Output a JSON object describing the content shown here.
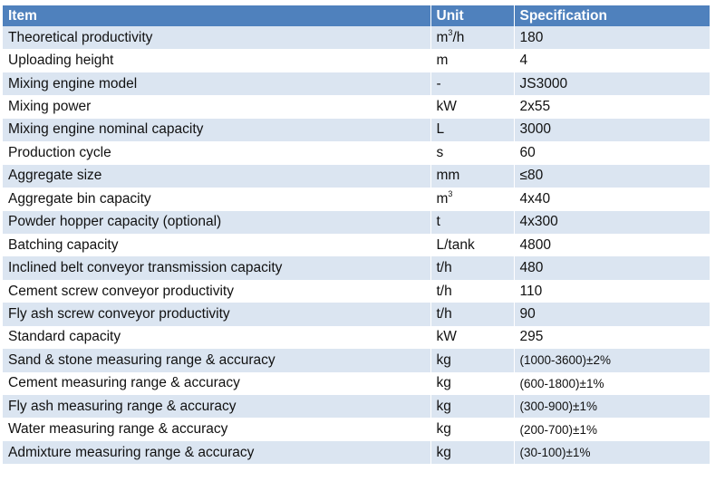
{
  "table": {
    "headers": {
      "item": "Item",
      "unit": "Unit",
      "specification": "Specification"
    },
    "rows": [
      {
        "item": "Theoretical productivity",
        "unit": "m",
        "unit_sup": "3",
        "unit_suffix": "/h",
        "spec": "180"
      },
      {
        "item": "Uploading height",
        "unit": "m",
        "unit_sup": "",
        "unit_suffix": "",
        "spec": "4"
      },
      {
        "item": "Mixing engine model",
        "unit": "-",
        "unit_sup": "",
        "unit_suffix": "",
        "spec": "JS3000"
      },
      {
        "item": "Mixing power",
        "unit": "kW",
        "unit_sup": "",
        "unit_suffix": "",
        "spec": "2x55"
      },
      {
        "item": "Mixing engine nominal capacity",
        "unit": "L",
        "unit_sup": "",
        "unit_suffix": "",
        "spec": "3000"
      },
      {
        "item": "Production cycle",
        "unit": "s",
        "unit_sup": "",
        "unit_suffix": "",
        "spec": "60"
      },
      {
        "item": "Aggregate size",
        "unit": "mm",
        "unit_sup": "",
        "unit_suffix": "",
        "spec": "≤80"
      },
      {
        "item": "Aggregate bin capacity",
        "unit": "m",
        "unit_sup": "3",
        "unit_suffix": "",
        "spec": "4x40"
      },
      {
        "item": "Powder hopper capacity (optional)",
        "unit": "t",
        "unit_sup": "",
        "unit_suffix": "",
        "spec": "4x300"
      },
      {
        "item": "Batching capacity",
        "unit": "L/tank",
        "unit_sup": "",
        "unit_suffix": "",
        "spec": "4800"
      },
      {
        "item": "Inclined belt conveyor transmission capacity",
        "unit": "t/h",
        "unit_sup": "",
        "unit_suffix": "",
        "spec": "480"
      },
      {
        "item": "Cement screw conveyor productivity",
        "unit": "t/h",
        "unit_sup": "",
        "unit_suffix": "",
        "spec": "110"
      },
      {
        "item": "Fly ash screw conveyor productivity",
        "unit": "t/h",
        "unit_sup": "",
        "unit_suffix": "",
        "spec": "90"
      },
      {
        "item": "Standard capacity",
        "unit": "kW",
        "unit_sup": "",
        "unit_suffix": "",
        "spec": "295"
      },
      {
        "item": "Sand & stone measuring range & accuracy",
        "unit": "kg",
        "unit_sup": "",
        "unit_suffix": "",
        "spec": "(1000-3600)±2%"
      },
      {
        "item": "Cement measuring range & accuracy",
        "unit": "kg",
        "unit_sup": "",
        "unit_suffix": "",
        "spec": "(600-1800)±1%"
      },
      {
        "item": "Fly ash measuring range & accuracy",
        "unit": "kg",
        "unit_sup": "",
        "unit_suffix": "",
        "spec": "(300-900)±1%"
      },
      {
        "item": "Water measuring range & accuracy",
        "unit": "kg",
        "unit_sup": "",
        "unit_suffix": "",
        "spec": "(200-700)±1%"
      },
      {
        "item": "Admixture measuring range & accuracy",
        "unit": "kg",
        "unit_sup": "",
        "unit_suffix": "",
        "spec": "(30-100)±1%"
      }
    ]
  },
  "colors": {
    "header_bg": "#4f81bd",
    "header_text": "#ffffff",
    "band_row_bg": "#dbe5f1",
    "plain_row_bg": "#ffffff"
  }
}
